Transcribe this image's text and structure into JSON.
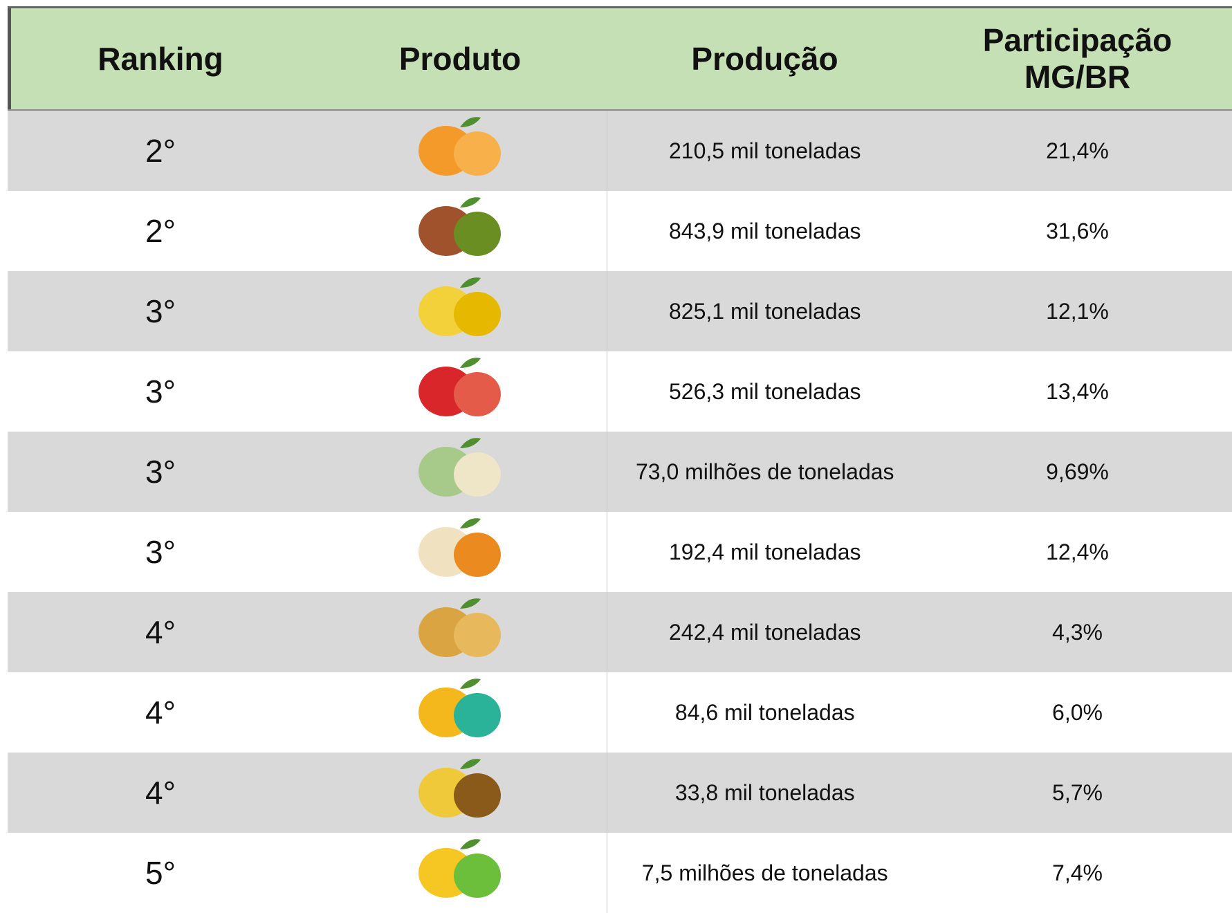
{
  "table": {
    "header": [
      "Ranking",
      "Produto",
      "Produção",
      "Participação MG/BR"
    ],
    "rows": [
      [
        "2°",
        "210,5 mil toneladas",
        "21,4%"
      ],
      [
        "2°",
        "843,9 mil toneladas",
        "31,6%"
      ],
      [
        "3°",
        "825,1 mil toneladas",
        "12,1%"
      ],
      [
        "3°",
        "526,3 mil toneladas",
        "13,4%"
      ],
      [
        "3°",
        "73,0 milhões de toneladas",
        "9,69%"
      ],
      [
        "3°",
        "192,4 mil toneladas",
        "12,4%"
      ],
      [
        "4°",
        "242,4 mil toneladas",
        "4,3%"
      ],
      [
        "4°",
        "84,6 mil toneladas",
        "6,0%"
      ],
      [
        "4°",
        "33,8 mil toneladas",
        "5,7%"
      ],
      [
        "5°",
        "7,5 milhões de toneladas",
        "7,4%"
      ]
    ]
  }
}
